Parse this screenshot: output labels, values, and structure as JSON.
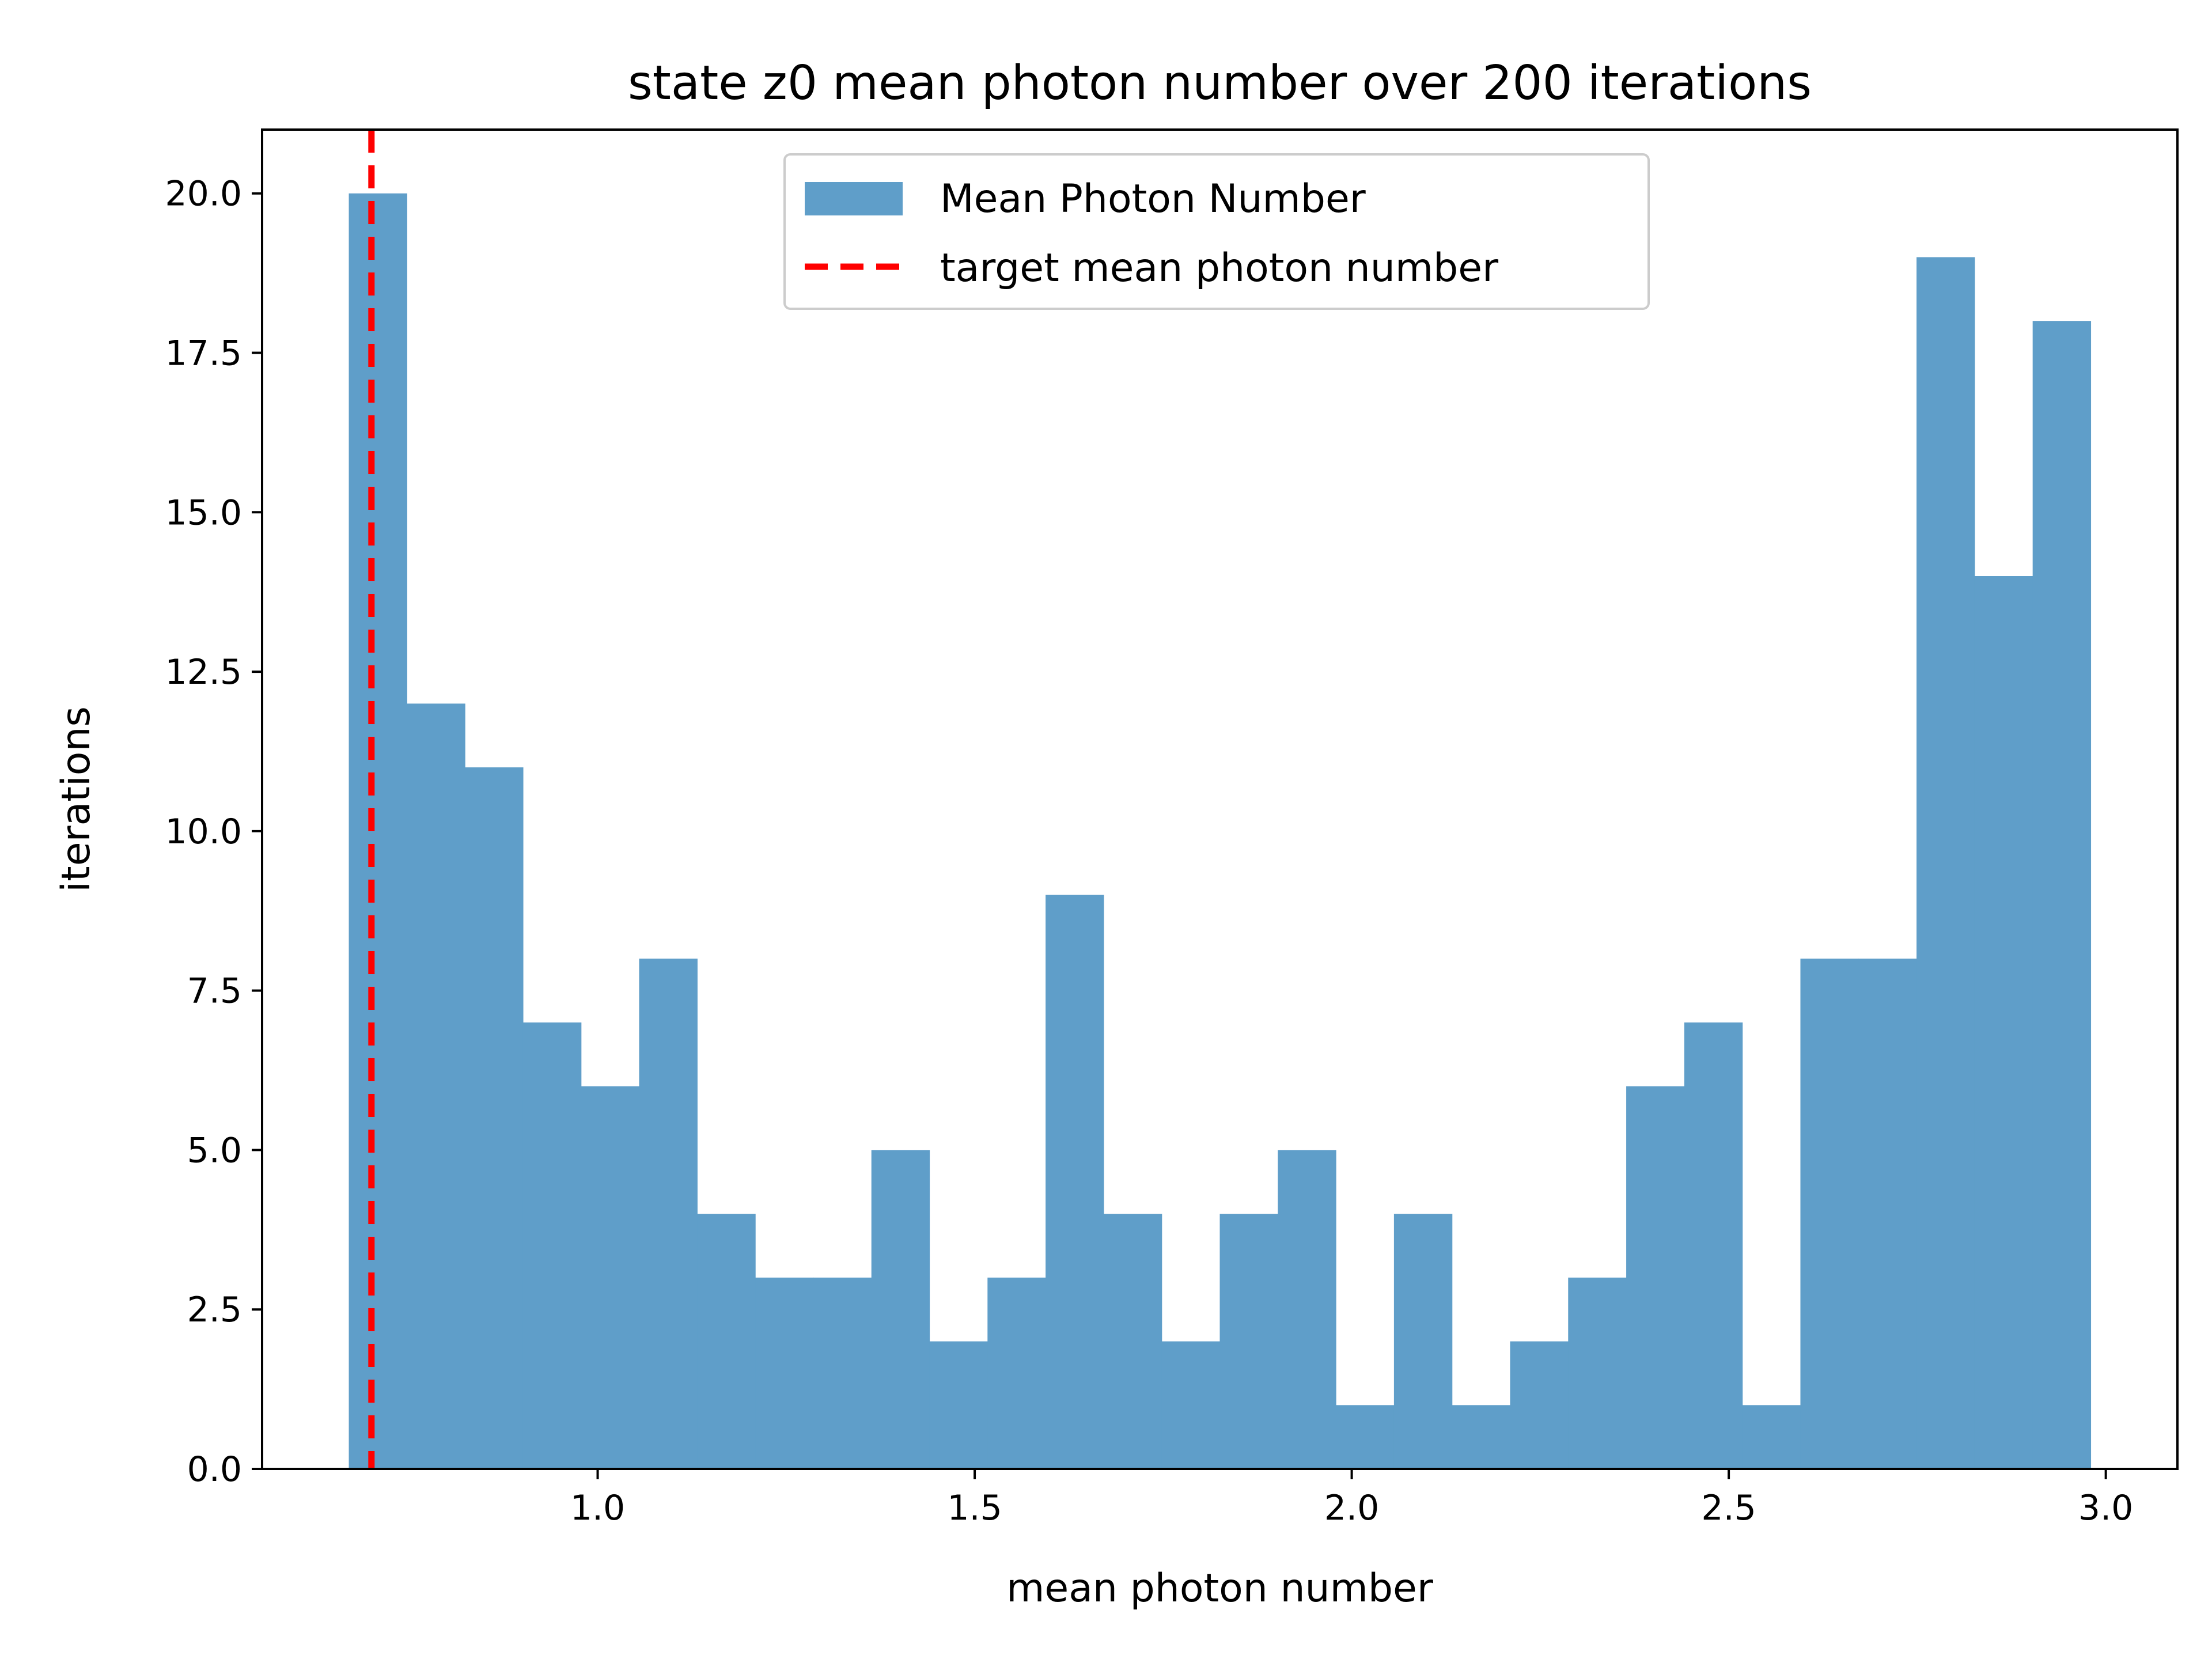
{
  "chart_data": {
    "type": "bar",
    "subtype": "histogram",
    "title": "state z0 mean photon number over 200 iterations",
    "xlabel": "mean photon number",
    "ylabel": "iterations",
    "xlim": [
      0.555,
      3.095
    ],
    "ylim": [
      0,
      21
    ],
    "xticks": [
      1.0,
      1.5,
      2.0,
      2.5,
      3.0
    ],
    "xtick_labels": [
      "1.0",
      "1.5",
      "2.0",
      "2.5",
      "3.0"
    ],
    "yticks": [
      0,
      2.5,
      5,
      7.5,
      10,
      12.5,
      15,
      17.5,
      20
    ],
    "ytick_labels": [
      "0.0",
      "2.5",
      "5.0",
      "7.5",
      "10.0",
      "12.5",
      "15.0",
      "17.5",
      "20.0"
    ],
    "bin_start": 0.67,
    "bin_width": 0.077,
    "series": [
      {
        "name": "Mean Photon Number",
        "color": "#5f9ec9",
        "values": [
          20,
          12,
          11,
          7,
          6,
          8,
          4,
          3,
          3,
          5,
          2,
          3,
          9,
          4,
          2,
          4,
          5,
          1,
          4,
          1,
          2,
          3,
          6,
          7,
          1,
          8,
          8,
          19,
          14,
          18
        ]
      }
    ],
    "reference_line": {
      "name": "target mean photon number",
      "x": 0.7,
      "color": "#ff0000",
      "style": "dashed"
    },
    "legend": {
      "placement": "upper center",
      "entries": [
        "Mean Photon Number",
        "target mean photon number"
      ]
    },
    "grid": false
  }
}
